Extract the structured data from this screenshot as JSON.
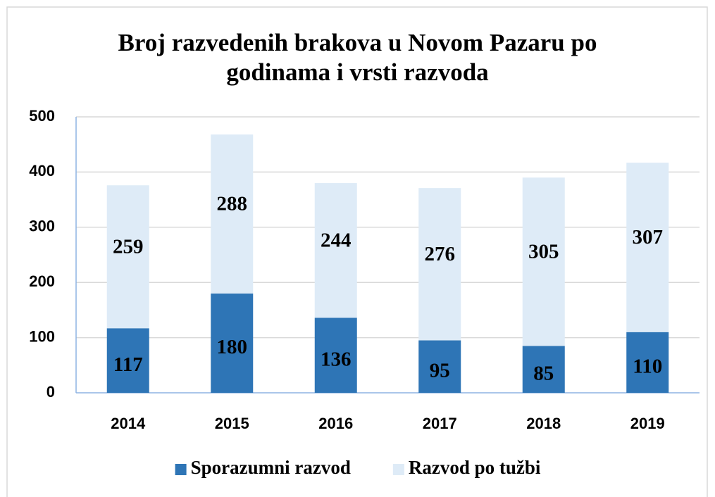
{
  "chart_data": {
    "type": "stacked_bar",
    "title": "Broj razvedenih brakova u Novom Pazaru po godinama i vrsti razvoda",
    "categories": [
      "2014",
      "2015",
      "2016",
      "2017",
      "2018",
      "2019"
    ],
    "series": [
      {
        "name": "Sporazumni razvod",
        "color": "#2e75b6",
        "values": [
          117,
          180,
          136,
          95,
          85,
          110
        ]
      },
      {
        "name": "Razvod po tužbi",
        "color": "#deebf7",
        "values": [
          259,
          288,
          244,
          276,
          305,
          307
        ]
      }
    ],
    "ylim": [
      0,
      500
    ],
    "yticks": [
      0,
      100,
      200,
      300,
      400,
      500
    ],
    "grid": true,
    "legend": "bottom"
  }
}
